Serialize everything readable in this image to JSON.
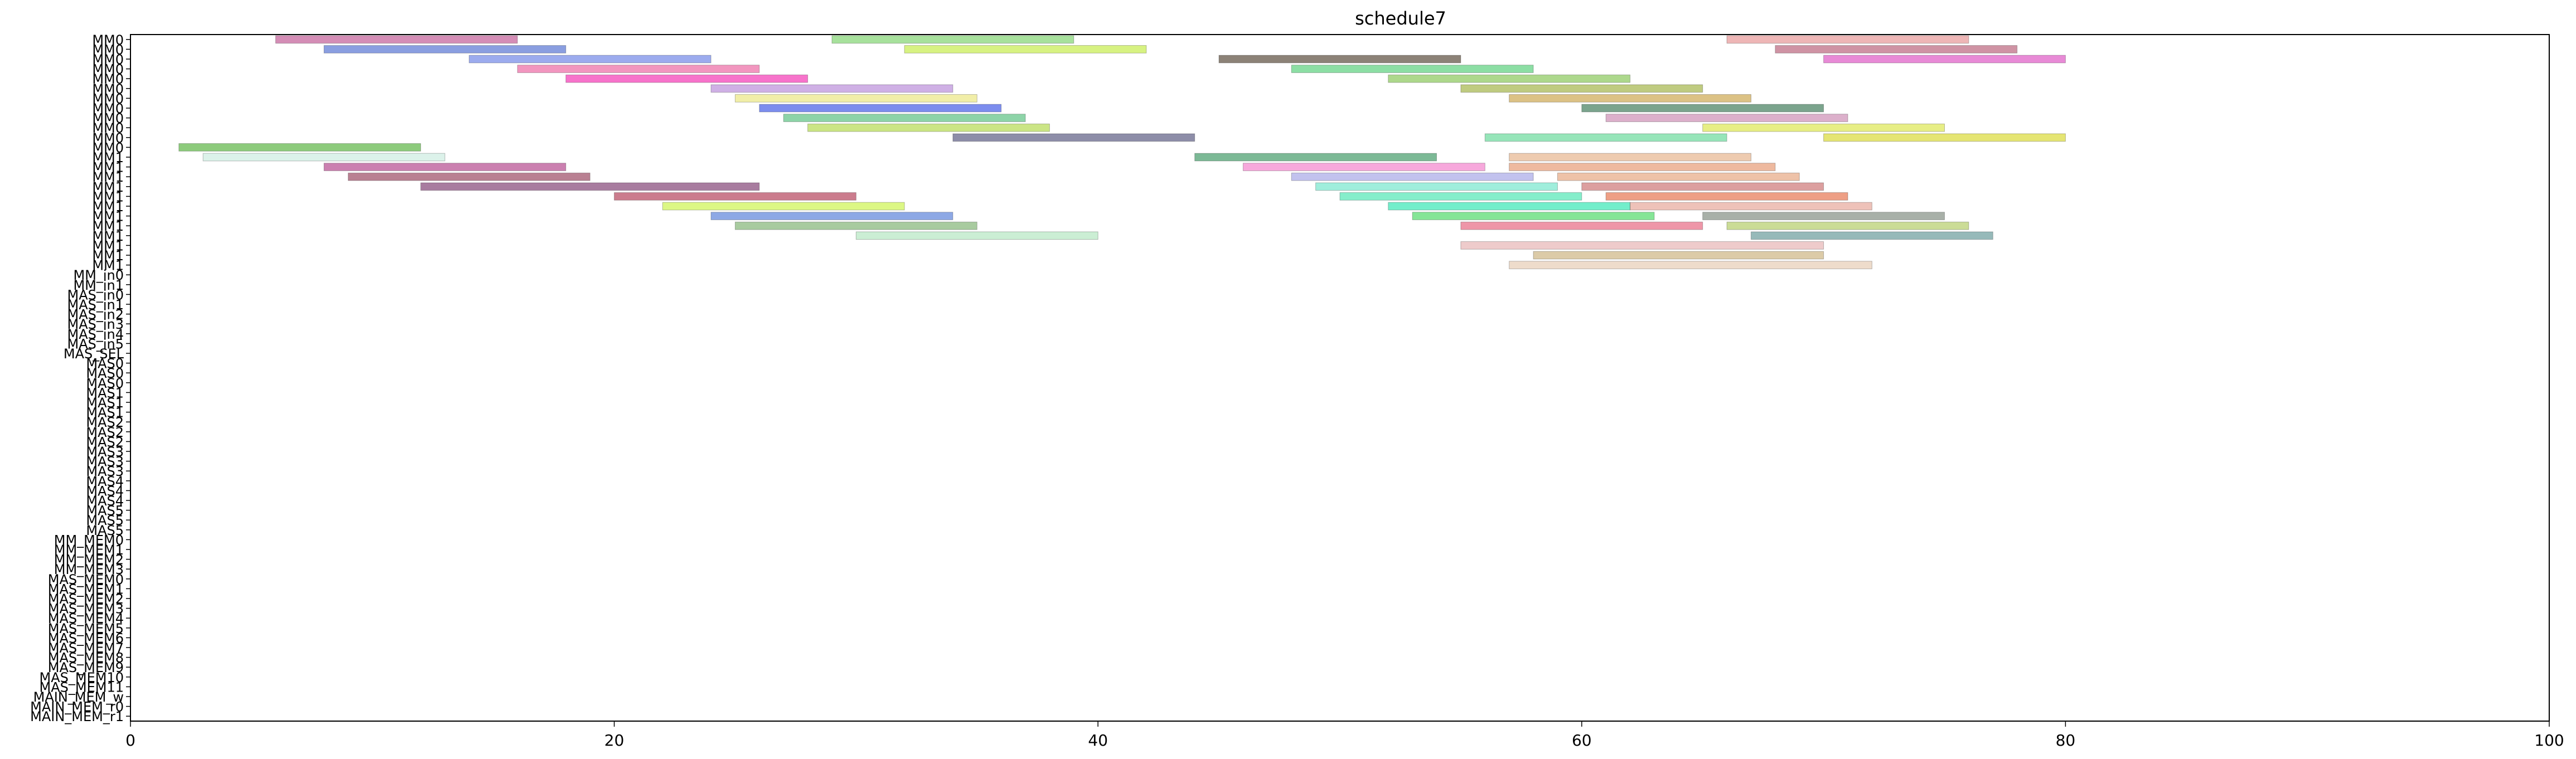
{
  "chart_data": {
    "type": "gantt",
    "title": "schedule7",
    "xlabel": "",
    "ylabel": "",
    "xlim": [
      0,
      100
    ],
    "x_ticks": [
      0,
      20,
      40,
      60,
      80,
      100
    ],
    "grid": false,
    "rows": [
      "MM0",
      "MM0",
      "MM0",
      "MM0",
      "MM0",
      "MM0",
      "MM0",
      "MM0",
      "MM0",
      "MM0",
      "MM0",
      "MM0",
      "MM1",
      "MM1",
      "MM1",
      "MM1",
      "MM1",
      "MM1",
      "MM1",
      "MM1",
      "MM1",
      "MM1",
      "MM1",
      "MM1",
      "MM_in0",
      "MM_in1",
      "MAS_in0",
      "MAS_in1",
      "MAS_in2",
      "MAS_in3",
      "MAS_in4",
      "MAS_in5",
      "MAS_SEL",
      "MAS0",
      "MAS0",
      "MAS0",
      "MAS1",
      "MAS1",
      "MAS1",
      "MAS2",
      "MAS2",
      "MAS2",
      "MAS3",
      "MAS3",
      "MAS3",
      "MAS4",
      "MAS4",
      "MAS4",
      "MAS5",
      "MAS5",
      "MAS5",
      "MM_MEM0",
      "MM_MEM1",
      "MM_MEM2",
      "MM_MEM3",
      "MAS_MEM0",
      "MAS_MEM1",
      "MAS_MEM2",
      "MAS_MEM3",
      "MAS_MEM4",
      "MAS_MEM5",
      "MAS_MEM6",
      "MAS_MEM7",
      "MAS_MEM8",
      "MAS_MEM9",
      "MAS_MEM10",
      "MAS_MEM11",
      "MAIN_MEM_w",
      "MAIN_MEM_r0",
      "MAIN_MEM_r1"
    ],
    "tasks": [
      {
        "row": 0,
        "start": 6,
        "end": 16,
        "color": "#b0307a"
      },
      {
        "row": 0,
        "start": 29,
        "end": 39,
        "color": "#5fc94a"
      },
      {
        "row": 0,
        "start": 66,
        "end": 76,
        "color": "#e07a7a"
      },
      {
        "row": 1,
        "start": 8,
        "end": 18,
        "color": "#2a4ec7"
      },
      {
        "row": 1,
        "start": 32,
        "end": 42,
        "color": "#b7e81c"
      },
      {
        "row": 1,
        "start": 68,
        "end": 78,
        "color": "#a83a5a"
      },
      {
        "row": 2,
        "start": 14,
        "end": 24,
        "color": "#4b66e0"
      },
      {
        "row": 2,
        "start": 45,
        "end": 55,
        "color": "#2d1c08"
      },
      {
        "row": 2,
        "start": 70,
        "end": 80,
        "color": "#d62ab4"
      },
      {
        "row": 3,
        "start": 16,
        "end": 26,
        "color": "#e8408a"
      },
      {
        "row": 3,
        "start": 48,
        "end": 58,
        "color": "#2ec25a"
      },
      {
        "row": 4,
        "start": 18,
        "end": 28,
        "color": "#f000a0"
      },
      {
        "row": 4,
        "start": 52,
        "end": 62,
        "color": "#6ab82e"
      },
      {
        "row": 5,
        "start": 24,
        "end": 34,
        "color": "#a870d0"
      },
      {
        "row": 5,
        "start": 55,
        "end": 65,
        "color": "#8aa018"
      },
      {
        "row": 6,
        "start": 25,
        "end": 35,
        "color": "#e6e060"
      },
      {
        "row": 6,
        "start": 57,
        "end": 67,
        "color": "#c09020"
      },
      {
        "row": 7,
        "start": 26,
        "end": 36,
        "color": "#1030e0"
      },
      {
        "row": 7,
        "start": 60,
        "end": 70,
        "color": "#0e5a30"
      },
      {
        "row": 8,
        "start": 27,
        "end": 37,
        "color": "#30b060"
      },
      {
        "row": 8,
        "start": 61,
        "end": 71,
        "color": "#c070a0"
      },
      {
        "row": 9,
        "start": 28,
        "end": 38,
        "color": "#a0d020"
      },
      {
        "row": 9,
        "start": 65,
        "end": 75,
        "color": "#d4e020"
      },
      {
        "row": 10,
        "start": 34,
        "end": 44,
        "color": "#303060"
      },
      {
        "row": 10,
        "start": 56,
        "end": 66,
        "color": "#40d080"
      },
      {
        "row": 10,
        "start": 70,
        "end": 80,
        "color": "#d0d000"
      },
      {
        "row": 11,
        "start": 2,
        "end": 12,
        "color": "#30a010"
      },
      {
        "row": 12,
        "start": 3,
        "end": 13,
        "color": "#c0e8d8"
      },
      {
        "row": 12,
        "start": 44,
        "end": 54,
        "color": "#108040"
      },
      {
        "row": 12,
        "start": 57,
        "end": 67,
        "color": "#e0a070"
      },
      {
        "row": 13,
        "start": 8,
        "end": 18,
        "color": "#a01870"
      },
      {
        "row": 13,
        "start": 46,
        "end": 56,
        "color": "#f060c0"
      },
      {
        "row": 13,
        "start": 57,
        "end": 68,
        "color": "#e08050"
      },
      {
        "row": 14,
        "start": 9,
        "end": 19,
        "color": "#801838"
      },
      {
        "row": 14,
        "start": 48,
        "end": 58,
        "color": "#9090e0"
      },
      {
        "row": 14,
        "start": 59,
        "end": 69,
        "color": "#e09060"
      },
      {
        "row": 15,
        "start": 12,
        "end": 26,
        "color": "#601050"
      },
      {
        "row": 15,
        "start": 49,
        "end": 59,
        "color": "#50e0c0"
      },
      {
        "row": 15,
        "start": 60,
        "end": 70,
        "color": "#c05050"
      },
      {
        "row": 16,
        "start": 20,
        "end": 30,
        "color": "#a01030"
      },
      {
        "row": 16,
        "start": 50,
        "end": 60,
        "color": "#20e0a0"
      },
      {
        "row": 16,
        "start": 61,
        "end": 71,
        "color": "#e05020"
      },
      {
        "row": 17,
        "start": 22,
        "end": 32,
        "color": "#c0f020"
      },
      {
        "row": 17,
        "start": 52,
        "end": 62,
        "color": "#00e0a0"
      },
      {
        "row": 17,
        "start": 62,
        "end": 72,
        "color": "#e09080"
      },
      {
        "row": 18,
        "start": 24,
        "end": 34,
        "color": "#3060d0"
      },
      {
        "row": 18,
        "start": 53,
        "end": 63,
        "color": "#20d040"
      },
      {
        "row": 18,
        "start": 65,
        "end": 75,
        "color": "#607060"
      },
      {
        "row": 19,
        "start": 25,
        "end": 35,
        "color": "#60a050"
      },
      {
        "row": 19,
        "start": 55,
        "end": 65,
        "color": "#e04060"
      },
      {
        "row": 19,
        "start": 66,
        "end": 76,
        "color": "#a0c040"
      },
      {
        "row": 20,
        "start": 30,
        "end": 40,
        "color": "#a0e0b0"
      },
      {
        "row": 20,
        "start": 67,
        "end": 77,
        "color": "#408080"
      },
      {
        "row": 21,
        "start": 55,
        "end": 70,
        "color": "#e0a0a0"
      },
      {
        "row": 22,
        "start": 58,
        "end": 70,
        "color": "#c0a060"
      },
      {
        "row": 23,
        "start": 57,
        "end": 72,
        "color": "#e0c0a0"
      }
    ]
  }
}
